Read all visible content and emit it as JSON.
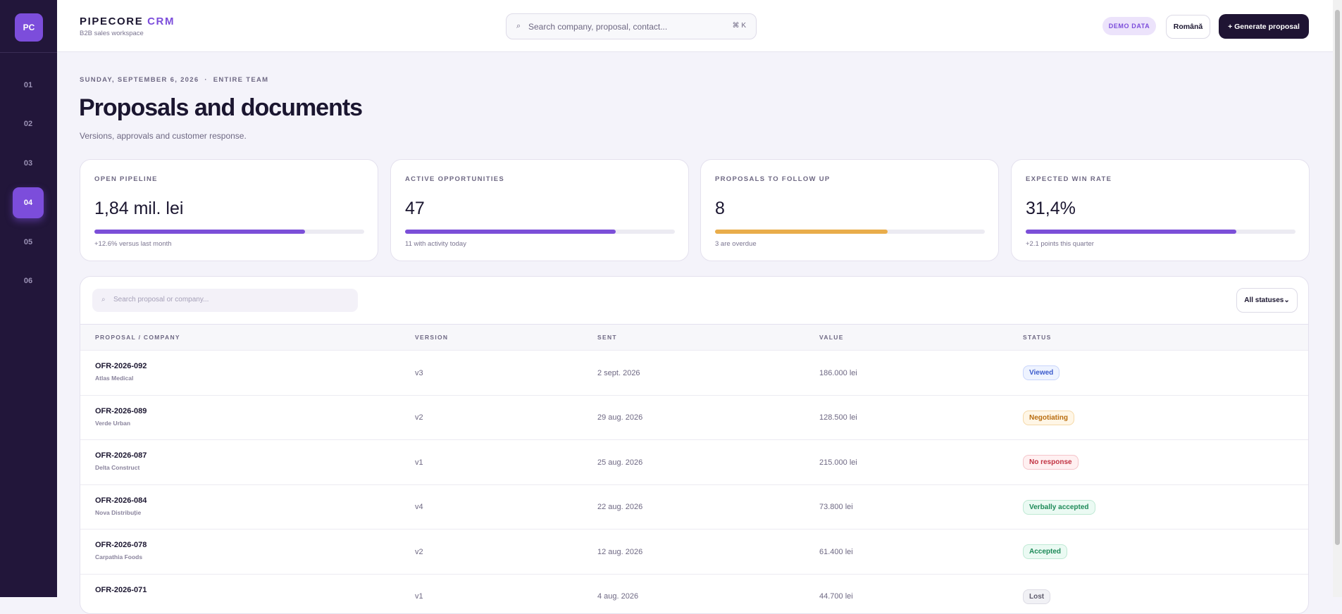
{
  "brand": {
    "name": "PIPECORE",
    "accent": "CRM",
    "tagline": "B2B sales workspace",
    "logo": "PC"
  },
  "nav": [
    "01",
    "02",
    "03",
    "04",
    "05",
    "06"
  ],
  "nav_active": 3,
  "header": {
    "search": "Search company, proposal, contact...",
    "shortcut": "⌘ K",
    "badge": "DEMO DATA",
    "language": "Română",
    "cta": "+ Generate proposal"
  },
  "page": {
    "date": "SUNDAY, SEPTEMBER 6, 2026",
    "scope": "ENTIRE TEAM",
    "separator": "·",
    "title": "Proposals and documents",
    "subtitle": "Versions, approvals and customer response."
  },
  "kpis": [
    {
      "label": "OPEN PIPELINE",
      "value": "1,84 mil. lei",
      "progress": 78,
      "color": "#7b4fd8",
      "note": "+12.6% versus last month"
    },
    {
      "label": "ACTIVE OPPORTUNITIES",
      "value": "47",
      "progress": 78,
      "color": "#7b4fd8",
      "note": "11 with activity today"
    },
    {
      "label": "PROPOSALS TO FOLLOW UP",
      "value": "8",
      "progress": 64,
      "color": "#e9ad4b",
      "note": "3 are overdue"
    },
    {
      "label": "EXPECTED WIN RATE",
      "value": "31,4%",
      "progress": 78,
      "color": "#7b4fd8",
      "note": "+2.1 points this quarter"
    }
  ],
  "table": {
    "search": "Search proposal or company...",
    "filter": "All statuses",
    "columns": [
      "PROPOSAL / COMPANY",
      "VERSION",
      "SENT",
      "VALUE",
      "STATUS"
    ],
    "rows": [
      {
        "id": "OFR-2026-092",
        "company": "Atlas Medical",
        "version": "v3",
        "sent": "2 sept. 2026",
        "value": "186.000 lei",
        "status": "Viewed",
        "tone": "blue"
      },
      {
        "id": "OFR-2026-089",
        "company": "Verde Urban",
        "version": "v2",
        "sent": "29 aug. 2026",
        "value": "128.500 lei",
        "status": "Negotiating",
        "tone": "orange"
      },
      {
        "id": "OFR-2026-087",
        "company": "Delta Construct",
        "version": "v1",
        "sent": "25 aug. 2026",
        "value": "215.000 lei",
        "status": "No response",
        "tone": "red"
      },
      {
        "id": "OFR-2026-084",
        "company": "Nova Distribuție",
        "version": "v4",
        "sent": "22 aug. 2026",
        "value": "73.800 lei",
        "status": "Verbally accepted",
        "tone": "green"
      },
      {
        "id": "OFR-2026-078",
        "company": "Carpathia Foods",
        "version": "v2",
        "sent": "12 aug. 2026",
        "value": "61.400 lei",
        "status": "Accepted",
        "tone": "green"
      },
      {
        "id": "OFR-2026-071",
        "version": "v1",
        "sent": "4 aug. 2026",
        "value": "44.700 lei",
        "status": "Lost",
        "tone": "gray"
      }
    ]
  }
}
